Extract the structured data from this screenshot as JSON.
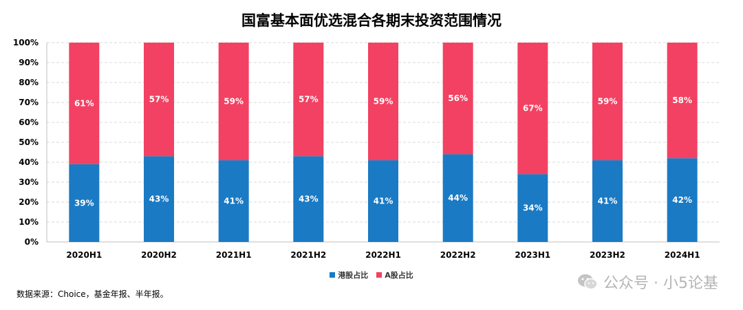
{
  "chart_data": {
    "type": "bar",
    "stacked": true,
    "title": "国富基本面优选混合各期末投资范围情况",
    "categories": [
      "2020H1",
      "2020H2",
      "2021H1",
      "2021H2",
      "2022H1",
      "2022H2",
      "2023H1",
      "2023H2",
      "2024H1"
    ],
    "series": [
      {
        "name": "港股占比",
        "color": "#1a7ac4",
        "values": [
          39,
          43,
          41,
          43,
          41,
          44,
          34,
          41,
          42
        ]
      },
      {
        "name": "A股占比",
        "color": "#f24162",
        "values": [
          61,
          57,
          59,
          57,
          59,
          56,
          67,
          59,
          58
        ]
      }
    ],
    "value_labels": {
      "港股占比": [
        "39%",
        "43%",
        "41%",
        "43%",
        "41%",
        "44%",
        "34%",
        "41%",
        "42%"
      ],
      "A股占比": [
        "61%",
        "57%",
        "59%",
        "57%",
        "59%",
        "56%",
        "67%",
        "59%",
        "58%"
      ]
    },
    "ylim": [
      0,
      100
    ],
    "yticks": [
      "0%",
      "10%",
      "20%",
      "30%",
      "40%",
      "50%",
      "60%",
      "70%",
      "80%",
      "90%",
      "100%"
    ],
    "grid": true,
    "legend_position": "bottom"
  },
  "source_note": "数据来源：Choice，基金年报、半年报。",
  "watermark": {
    "icon": "wechat-icon",
    "text": "公众号 · 小5论基"
  }
}
